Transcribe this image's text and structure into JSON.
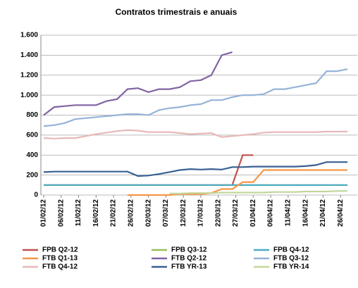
{
  "chart_data": {
    "type": "line",
    "title": "Contratos trimestrais e anuais",
    "x": [
      "01/02/12",
      "04/02/12",
      "07/02/12",
      "10/02/12",
      "13/02/12",
      "16/02/12",
      "19/02/12",
      "22/02/12",
      "25/02/12",
      "28/02/12",
      "02/03/12",
      "05/03/12",
      "08/03/12",
      "11/03/12",
      "14/03/12",
      "17/03/12",
      "20/03/12",
      "23/03/12",
      "26/03/12",
      "29/03/12",
      "01/04/12",
      "04/04/12",
      "07/04/12",
      "10/04/12",
      "13/04/12",
      "16/04/12",
      "19/04/12",
      "22/04/12",
      "25/04/12",
      "28/04/12"
    ],
    "xlim": [
      "01/02/12",
      "30/04/12"
    ],
    "xticks": [
      "01/02/12",
      "06/02/12",
      "11/02/12",
      "16/02/12",
      "21/02/12",
      "26/02/12",
      "02/03/12",
      "07/03/12",
      "12/03/12",
      "17/03/12",
      "22/03/12",
      "27/03/12",
      "01/04/12",
      "06/04/12",
      "11/04/12",
      "16/04/12",
      "21/04/12",
      "26/04/12"
    ],
    "ylim": [
      0,
      1600
    ],
    "yticks": [
      0,
      200,
      400,
      600,
      800,
      {
        "value": 1000,
        "label": "1.000"
      },
      {
        "value": 1200,
        "label": "1.200"
      },
      {
        "value": 1400,
        "label": "1.400"
      },
      {
        "value": 1600,
        "label": "1.600"
      }
    ],
    "grid": true,
    "legend": "bottom",
    "series": [
      {
        "name": "FPB Q2-12",
        "color": "#c0504d",
        "values": [
          100,
          100,
          100,
          100,
          100,
          100,
          100,
          100,
          100,
          100,
          100,
          100,
          100,
          100,
          100,
          100,
          100,
          100,
          100,
          400,
          400,
          null,
          null,
          null,
          null,
          null,
          null,
          null,
          null,
          null
        ]
      },
      {
        "name": "FPB Q3-12",
        "color": "#9bbb59",
        "values": [
          100,
          100,
          100,
          100,
          100,
          100,
          100,
          100,
          100,
          100,
          100,
          100,
          100,
          100,
          100,
          100,
          100,
          100,
          100,
          100,
          100,
          100,
          100,
          100,
          100,
          100,
          100,
          100,
          100,
          100
        ]
      },
      {
        "name": "FPB Q4-12",
        "color": "#4bacc6",
        "values": [
          100,
          100,
          100,
          100,
          100,
          100,
          100,
          100,
          100,
          100,
          100,
          100,
          100,
          100,
          100,
          100,
          100,
          100,
          100,
          100,
          100,
          100,
          100,
          100,
          100,
          100,
          100,
          100,
          100,
          100
        ]
      },
      {
        "name": "FTB Q1-13",
        "color": "#f79646",
        "values": [
          null,
          null,
          null,
          null,
          null,
          null,
          null,
          null,
          0,
          0,
          0,
          0,
          0,
          10,
          10,
          10,
          20,
          60,
          60,
          130,
          130,
          250,
          250,
          250,
          250,
          250,
          250,
          250,
          250,
          250
        ]
      },
      {
        "name": "FTB Q2-12",
        "color": "#8064a2",
        "values": [
          800,
          880,
          890,
          900,
          900,
          900,
          940,
          960,
          1060,
          1070,
          1030,
          1060,
          1060,
          1080,
          1140,
          1150,
          1200,
          1400,
          1430,
          null,
          null,
          null,
          null,
          null,
          null,
          null,
          null,
          null,
          null,
          null
        ]
      },
      {
        "name": "FTB Q3-12",
        "color": "#95b3d7",
        "values": [
          690,
          700,
          720,
          760,
          770,
          780,
          790,
          800,
          810,
          810,
          800,
          850,
          870,
          880,
          900,
          910,
          950,
          950,
          980,
          1000,
          1000,
          1010,
          1060,
          1060,
          1080,
          1100,
          1120,
          1240,
          1240,
          1260
        ]
      },
      {
        "name": "FTB Q4-12",
        "color": "#e6b9b8",
        "values": [
          570,
          565,
          570,
          570,
          590,
          610,
          625,
          640,
          650,
          645,
          630,
          630,
          630,
          620,
          610,
          615,
          620,
          580,
          590,
          600,
          610,
          625,
          630,
          630,
          630,
          630,
          630,
          635,
          635,
          635
        ]
      },
      {
        "name": "FTB YR-13",
        "color": "#376092",
        "values": [
          230,
          235,
          235,
          235,
          235,
          235,
          235,
          235,
          235,
          190,
          195,
          210,
          230,
          250,
          260,
          255,
          260,
          255,
          280,
          280,
          285,
          285,
          285,
          285,
          285,
          290,
          300,
          330,
          330,
          330
        ]
      },
      {
        "name": "FTB YR-14",
        "color": "#c3d69b",
        "values": [
          null,
          null,
          null,
          null,
          null,
          null,
          null,
          null,
          null,
          null,
          null,
          null,
          15,
          15,
          20,
          20,
          20,
          25,
          25,
          25,
          25,
          25,
          30,
          30,
          30,
          35,
          35,
          35,
          40,
          40
        ]
      }
    ]
  }
}
